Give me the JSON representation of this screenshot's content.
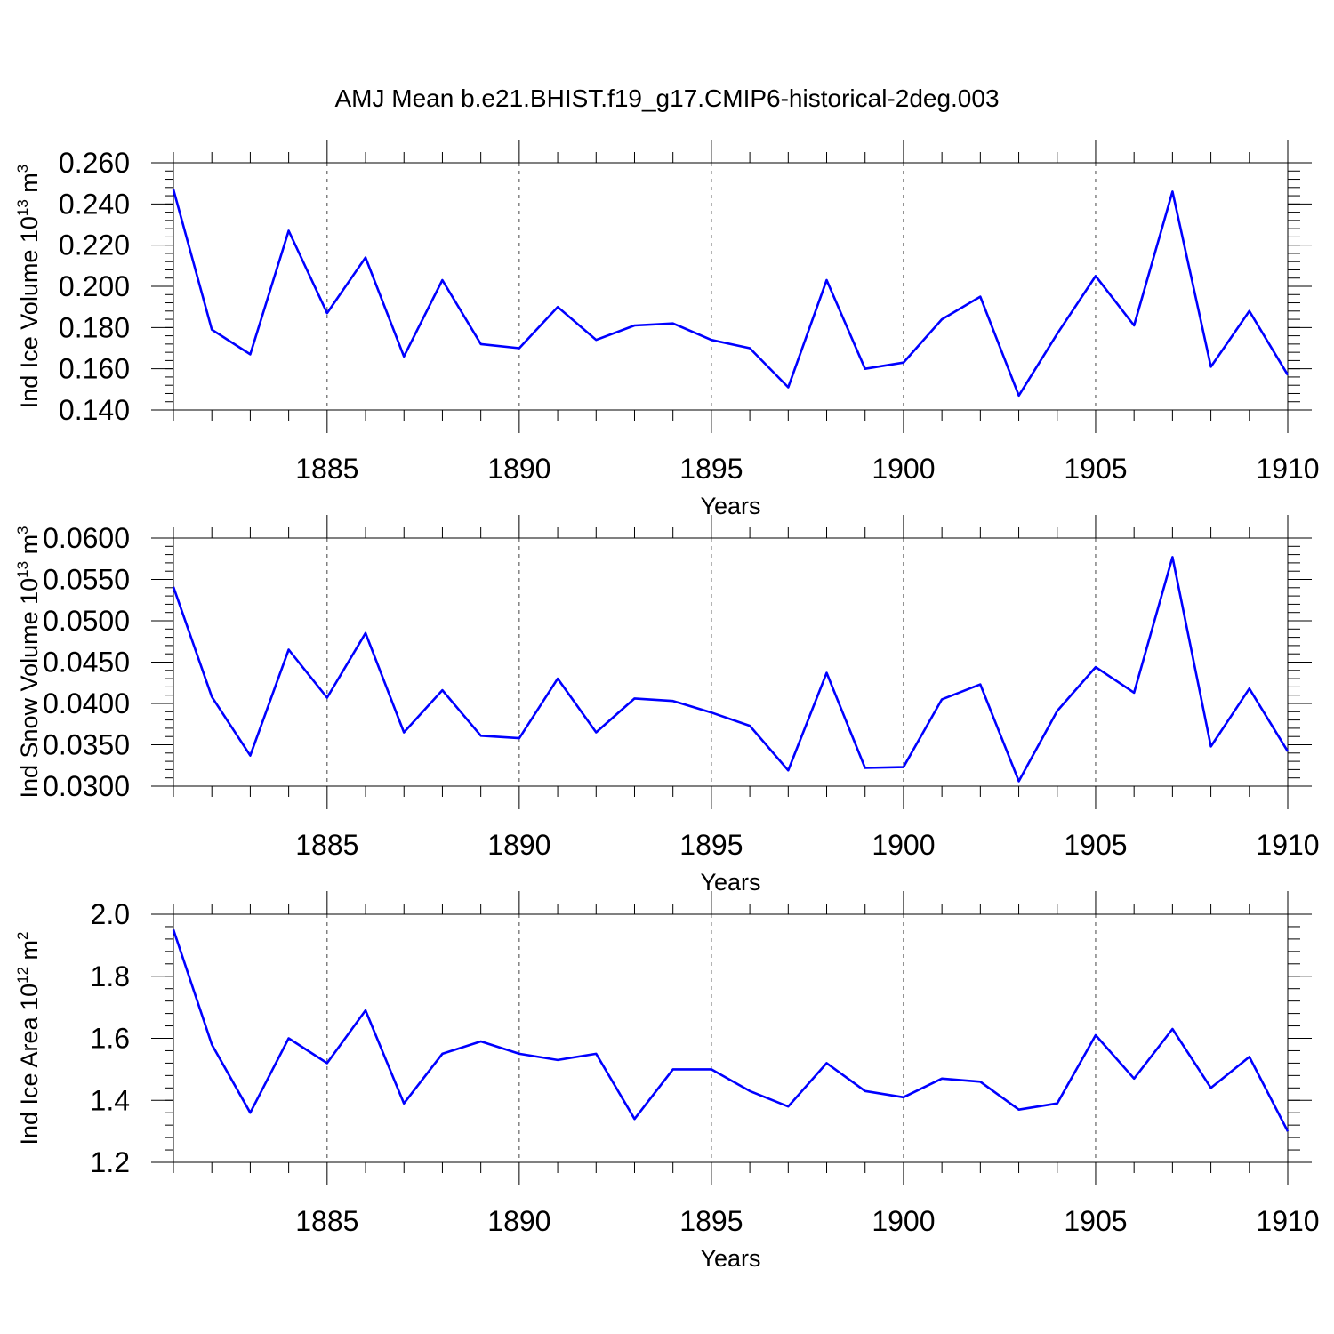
{
  "chart_data": {
    "type": "line",
    "title": "AMJ Mean b.e21.BHIST.f19_g17.CMIP6-historical-2deg.003",
    "color": "#0000ff",
    "grid_color": "#444444",
    "x": [
      1881,
      1882,
      1883,
      1884,
      1885,
      1886,
      1887,
      1888,
      1889,
      1890,
      1891,
      1892,
      1893,
      1894,
      1895,
      1896,
      1897,
      1898,
      1899,
      1900,
      1901,
      1902,
      1903,
      1904,
      1905,
      1906,
      1907,
      1908,
      1909,
      1910
    ],
    "xlim": [
      1881,
      1910
    ],
    "xticks": [
      1885,
      1890,
      1895,
      1900,
      1905,
      1910
    ],
    "xtick_labels": [
      "1885",
      "1890",
      "1895",
      "1900",
      "1905",
      "1910"
    ],
    "xgrid": [
      1885,
      1890,
      1895,
      1900,
      1905
    ],
    "panels": [
      {
        "name": "ice-volume",
        "ylabel_main": "Ind Ice Volume 10",
        "ylabel_sup": "13",
        "ylabel_unit": " m",
        "ylabel_unit_sup": "3",
        "xlabel": "Years",
        "ylim": [
          0.14,
          0.26
        ],
        "yticks": [
          0.14,
          0.16,
          0.18,
          0.2,
          0.22,
          0.24,
          0.26
        ],
        "ytick_labels": [
          "0.140",
          "0.160",
          "0.180",
          "0.200",
          "0.220",
          "0.240",
          "0.260"
        ],
        "yminor": 0.004,
        "values": [
          0.247,
          0.179,
          0.167,
          0.227,
          0.187,
          0.214,
          0.166,
          0.203,
          0.172,
          0.17,
          0.19,
          0.174,
          0.181,
          0.182,
          0.174,
          0.17,
          0.151,
          0.203,
          0.16,
          0.163,
          0.184,
          0.195,
          0.147,
          0.177,
          0.205,
          0.181,
          0.246,
          0.161,
          0.188,
          0.157
        ]
      },
      {
        "name": "snow-volume",
        "ylabel_main": "Ind Snow Volume 10",
        "ylabel_sup": "13",
        "ylabel_unit": " m",
        "ylabel_unit_sup": "3",
        "xlabel": "Years",
        "ylim": [
          0.03,
          0.06
        ],
        "yticks": [
          0.03,
          0.035,
          0.04,
          0.045,
          0.05,
          0.055,
          0.06
        ],
        "ytick_labels": [
          "0.0300",
          "0.0350",
          "0.0400",
          "0.0450",
          "0.0500",
          "0.0550",
          "0.0600"
        ],
        "yminor": 0.001,
        "values": [
          0.0541,
          0.0408,
          0.0337,
          0.0465,
          0.0407,
          0.0485,
          0.0365,
          0.0416,
          0.0361,
          0.0358,
          0.043,
          0.0365,
          0.0406,
          0.0403,
          0.0389,
          0.0373,
          0.0319,
          0.0437,
          0.0322,
          0.0323,
          0.0405,
          0.0423,
          0.0306,
          0.0391,
          0.0444,
          0.0413,
          0.0577,
          0.0348,
          0.0418,
          0.0342
        ]
      },
      {
        "name": "ice-area",
        "ylabel_main": "Ind Ice Area 10",
        "ylabel_sup": "12",
        "ylabel_unit": " m",
        "ylabel_unit_sup": "2",
        "xlabel": "Years",
        "ylim": [
          1.2,
          2.0
        ],
        "yticks": [
          1.2,
          1.4,
          1.6,
          1.8,
          2.0
        ],
        "ytick_labels": [
          "1.2",
          "1.4",
          "1.6",
          "1.8",
          "2.0"
        ],
        "yminor": 0.04,
        "values": [
          1.95,
          1.58,
          1.36,
          1.6,
          1.52,
          1.69,
          1.39,
          1.55,
          1.59,
          1.55,
          1.53,
          1.55,
          1.34,
          1.5,
          1.5,
          1.43,
          1.38,
          1.52,
          1.43,
          1.41,
          1.47,
          1.46,
          1.37,
          1.39,
          1.61,
          1.47,
          1.63,
          1.44,
          1.54,
          1.3
        ]
      }
    ]
  }
}
